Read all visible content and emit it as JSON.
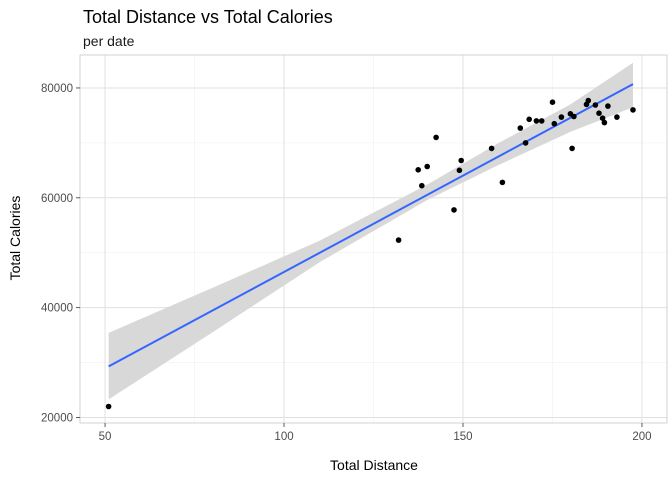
{
  "chart_data": {
    "type": "scatter",
    "title": "Total Distance vs Total Calories",
    "subtitle": "per date",
    "xlabel": "Total Distance",
    "ylabel": "Total Calories",
    "xlim": [
      43,
      207
    ],
    "ylim": [
      19000,
      86000
    ],
    "x_ticks": [
      50,
      100,
      150,
      200
    ],
    "y_ticks": [
      20000,
      40000,
      60000,
      80000
    ],
    "x_tick_labels": [
      "50",
      "100",
      "150",
      "200"
    ],
    "y_tick_labels": [
      "20000",
      "40000",
      "60000",
      "80000"
    ],
    "x_minor": [
      75,
      125,
      175
    ],
    "y_minor": [
      30000,
      50000,
      70000
    ],
    "grid": true,
    "points": [
      {
        "x": 51,
        "y": 22000
      },
      {
        "x": 132,
        "y": 52300
      },
      {
        "x": 137.5,
        "y": 65100
      },
      {
        "x": 138.5,
        "y": 62200
      },
      {
        "x": 140,
        "y": 65700
      },
      {
        "x": 142.5,
        "y": 71000
      },
      {
        "x": 147.5,
        "y": 57800
      },
      {
        "x": 149,
        "y": 65000
      },
      {
        "x": 149.5,
        "y": 66800
      },
      {
        "x": 158,
        "y": 69000
      },
      {
        "x": 161,
        "y": 62800
      },
      {
        "x": 166,
        "y": 72700
      },
      {
        "x": 167.5,
        "y": 70000
      },
      {
        "x": 168.5,
        "y": 74300
      },
      {
        "x": 170.5,
        "y": 74000
      },
      {
        "x": 172,
        "y": 74000
      },
      {
        "x": 175,
        "y": 77400
      },
      {
        "x": 175.5,
        "y": 73500
      },
      {
        "x": 177.5,
        "y": 74700
      },
      {
        "x": 180,
        "y": 75300
      },
      {
        "x": 180.5,
        "y": 69000
      },
      {
        "x": 181,
        "y": 74800
      },
      {
        "x": 184.5,
        "y": 77000
      },
      {
        "x": 185,
        "y": 77700
      },
      {
        "x": 187,
        "y": 76900
      },
      {
        "x": 188,
        "y": 75400
      },
      {
        "x": 189,
        "y": 74500
      },
      {
        "x": 189.5,
        "y": 73700
      },
      {
        "x": 190.5,
        "y": 76700
      },
      {
        "x": 193,
        "y": 74700
      },
      {
        "x": 197.5,
        "y": 76000
      }
    ],
    "trend": {
      "method": "lm",
      "x_range": [
        51,
        197.5
      ],
      "fit": [
        29300,
        80700
      ],
      "band": [
        {
          "x": 51,
          "lo": 23300,
          "hi": 35400
        },
        {
          "x": 80,
          "lo": 35500,
          "hi": 43600
        },
        {
          "x": 110,
          "lo": 48300,
          "hi": 52200
        },
        {
          "x": 140,
          "lo": 59600,
          "hi": 62400
        },
        {
          "x": 160,
          "lo": 66000,
          "hi": 70000
        },
        {
          "x": 180,
          "lo": 72000,
          "hi": 77000
        },
        {
          "x": 197.5,
          "lo": 76500,
          "hi": 84600
        }
      ],
      "line_color": "#3366FF",
      "band_color": "#D6D6D6"
    },
    "point_color": "#000000",
    "grid_major_color": "#E0E0E0",
    "grid_minor_color": "#F0F0F0",
    "panel_border_color": "#C8C8C8"
  }
}
